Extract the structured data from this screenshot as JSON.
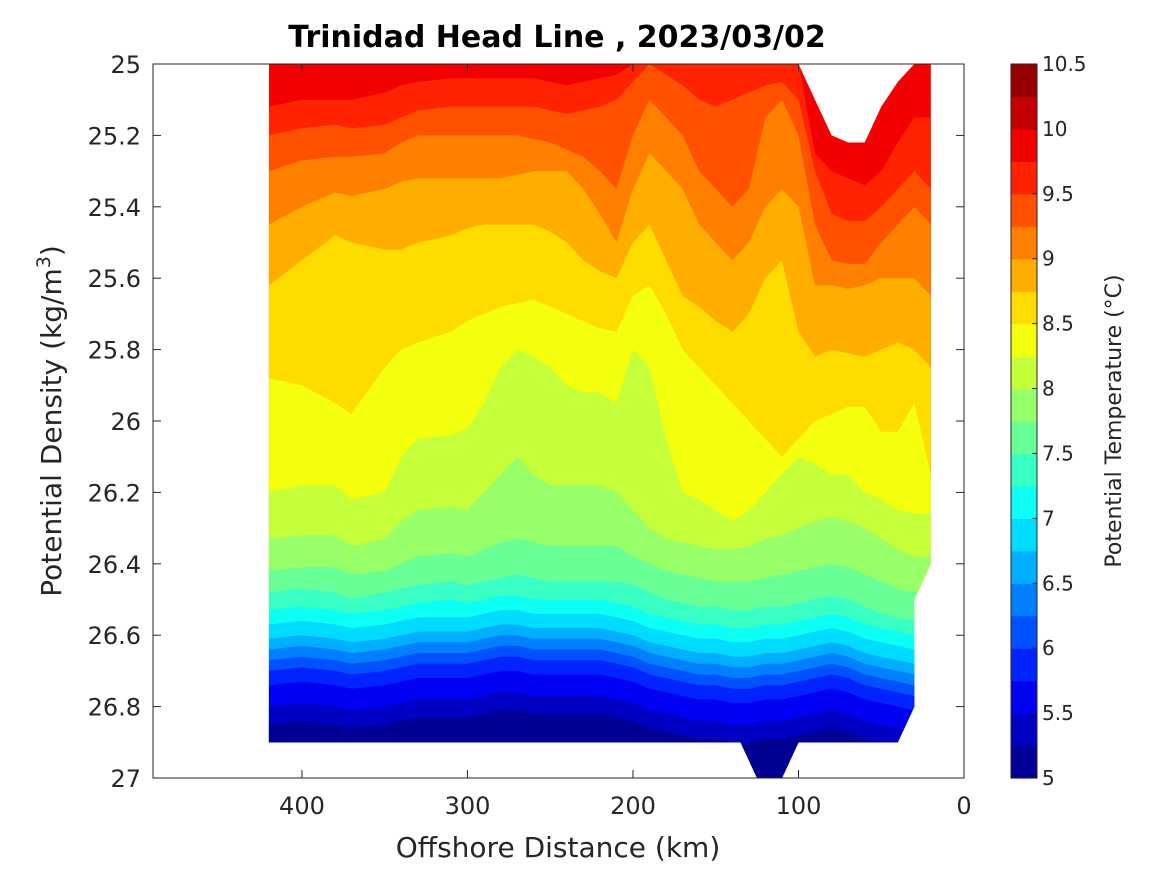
{
  "chart_data": {
    "type": "heatmap",
    "subtype": "filled-contour",
    "title": "Trinidad Head Line , 2023/03/02",
    "xlabel": "Offshore Distance (km)",
    "ylabel": "Potential Density (kg/m",
    "ylabel_superscript": "3",
    "ylabel_suffix": ")",
    "colorbar_label": "Potential Temperature (°C)",
    "x_reversed": true,
    "y_reversed": true,
    "xlim": [
      0,
      490
    ],
    "ylim": [
      25,
      27
    ],
    "x_ticks": [
      400,
      300,
      200,
      100,
      0
    ],
    "y_ticks": [
      25,
      25.2,
      25.4,
      25.6,
      25.8,
      26,
      26.2,
      26.4,
      26.6,
      26.8,
      27
    ],
    "y_tick_labels": [
      "25",
      "25.2",
      "25.4",
      "25.6",
      "25.8",
      "26",
      "26.2",
      "26.4",
      "26.6",
      "26.8",
      "27"
    ],
    "colorbar_ticks": [
      "10.5",
      "10",
      "9.5",
      "9",
      "8.5",
      "8",
      "7.5",
      "7",
      "6.5",
      "6",
      "5.5",
      "5"
    ],
    "colorbar_range": [
      5,
      10.5
    ],
    "contour_step": 0.25,
    "colormap": "jet",
    "grid": false,
    "stations_km": [
      420,
      400,
      380,
      370,
      350,
      340,
      330,
      310,
      300,
      290,
      280,
      270,
      260,
      250,
      240,
      230,
      220,
      210,
      200,
      190,
      180,
      170,
      160,
      150,
      140,
      130,
      120,
      110,
      100,
      90,
      80,
      70,
      60,
      50,
      40,
      30,
      20
    ],
    "isotherms": [
      {
        "temp": 10.0,
        "density": [
          25.0,
          25.0,
          25.0,
          25.0,
          25.0,
          25.0,
          25.0,
          25.0,
          25.0,
          25.0,
          25.0,
          25.0,
          25.0,
          25.0,
          25.0,
          25.0,
          25.0,
          25.0,
          25.0,
          25.0,
          25.0,
          25.0,
          25.0,
          25.0,
          25.0,
          25.0,
          25.0,
          25.0,
          25.0,
          25.1,
          25.2,
          25.22,
          25.22,
          25.12,
          25.05,
          25.0,
          25.0
        ]
      },
      {
        "temp": 9.75,
        "density": [
          25.12,
          25.1,
          25.1,
          25.1,
          25.08,
          25.06,
          25.05,
          25.04,
          25.04,
          25.04,
          25.04,
          25.04,
          25.04,
          25.05,
          25.06,
          25.05,
          25.04,
          25.03,
          25.0,
          25.0,
          25.0,
          25.0,
          25.0,
          25.0,
          25.0,
          25.0,
          25.0,
          25.0,
          25.0,
          25.25,
          25.3,
          25.32,
          25.34,
          25.3,
          25.22,
          25.15,
          25.15
        ]
      },
      {
        "temp": 9.5,
        "density": [
          25.2,
          25.18,
          25.17,
          25.18,
          25.17,
          25.15,
          25.13,
          25.12,
          25.12,
          25.12,
          25.12,
          25.12,
          25.12,
          25.13,
          25.14,
          25.13,
          25.12,
          25.1,
          25.05,
          25.0,
          25.03,
          25.06,
          25.1,
          25.12,
          25.1,
          25.08,
          25.06,
          25.05,
          25.1,
          25.3,
          25.42,
          25.44,
          25.44,
          25.4,
          25.35,
          25.3,
          25.35
        ]
      },
      {
        "temp": 9.25,
        "density": [
          25.3,
          25.27,
          25.26,
          25.26,
          25.25,
          25.22,
          25.2,
          25.2,
          25.2,
          25.2,
          25.2,
          25.2,
          25.21,
          25.22,
          25.24,
          25.26,
          25.3,
          25.35,
          25.2,
          25.1,
          25.15,
          25.2,
          25.3,
          25.35,
          25.4,
          25.35,
          25.15,
          25.1,
          25.2,
          25.45,
          25.55,
          25.56,
          25.56,
          25.5,
          25.45,
          25.4,
          25.45
        ]
      },
      {
        "temp": 9.0,
        "density": [
          25.45,
          25.4,
          25.36,
          25.37,
          25.35,
          25.33,
          25.32,
          25.32,
          25.32,
          25.32,
          25.32,
          25.31,
          25.3,
          25.3,
          25.3,
          25.35,
          25.42,
          25.5,
          25.35,
          25.25,
          25.3,
          25.35,
          25.45,
          25.5,
          25.55,
          25.5,
          25.4,
          25.35,
          25.4,
          25.62,
          25.62,
          25.63,
          25.62,
          25.6,
          25.6,
          25.6,
          25.65
        ]
      },
      {
        "temp": 8.75,
        "density": [
          25.62,
          25.55,
          25.48,
          25.5,
          25.52,
          25.52,
          25.5,
          25.48,
          25.46,
          25.45,
          25.45,
          25.45,
          25.45,
          25.47,
          25.5,
          25.55,
          25.58,
          25.6,
          25.5,
          25.45,
          25.55,
          25.65,
          25.68,
          25.72,
          25.75,
          25.7,
          25.6,
          25.55,
          25.75,
          25.82,
          25.8,
          25.81,
          25.82,
          25.8,
          25.78,
          25.8,
          25.85
        ]
      },
      {
        "temp": 8.5,
        "density": [
          25.88,
          25.9,
          25.95,
          25.98,
          25.85,
          25.8,
          25.78,
          25.75,
          25.72,
          25.7,
          25.68,
          25.67,
          25.66,
          25.68,
          25.7,
          25.72,
          25.74,
          25.75,
          25.65,
          25.62,
          25.7,
          25.8,
          25.85,
          25.9,
          25.95,
          26.0,
          26.05,
          26.1,
          26.05,
          26.0,
          25.98,
          25.96,
          25.96,
          26.03,
          26.03,
          25.95,
          26.15
        ]
      },
      {
        "temp": 8.25,
        "density": [
          26.2,
          26.18,
          26.18,
          26.22,
          26.2,
          26.1,
          26.05,
          26.04,
          26.02,
          25.95,
          25.85,
          25.8,
          25.82,
          25.85,
          25.9,
          25.92,
          25.92,
          25.95,
          25.8,
          25.85,
          26.05,
          26.2,
          26.22,
          26.25,
          26.28,
          26.25,
          26.2,
          26.15,
          26.1,
          26.12,
          26.15,
          26.15,
          26.2,
          26.22,
          26.25,
          26.26,
          26.26
        ]
      },
      {
        "temp": 8.0,
        "density": [
          26.33,
          26.32,
          26.32,
          26.35,
          26.33,
          26.28,
          26.25,
          26.24,
          26.25,
          26.2,
          26.15,
          26.1,
          26.15,
          26.18,
          26.18,
          26.18,
          26.18,
          26.2,
          26.25,
          26.3,
          26.33,
          26.34,
          26.35,
          26.36,
          26.36,
          26.35,
          26.33,
          26.32,
          26.3,
          26.28,
          26.27,
          26.28,
          26.3,
          26.33,
          26.36,
          26.38,
          26.38
        ]
      },
      {
        "temp": 7.75,
        "density": [
          26.42,
          26.41,
          26.41,
          26.43,
          26.42,
          26.4,
          26.38,
          26.37,
          26.38,
          26.36,
          26.34,
          26.33,
          26.34,
          26.35,
          26.35,
          26.35,
          26.35,
          26.35,
          26.38,
          26.4,
          26.42,
          26.43,
          26.44,
          26.45,
          26.45,
          26.45,
          26.44,
          26.43,
          26.42,
          26.41,
          26.4,
          26.41,
          26.43,
          26.45,
          26.47,
          26.48,
          26.47
        ]
      },
      {
        "temp": 7.5,
        "density": [
          26.48,
          26.47,
          26.48,
          26.5,
          26.48,
          26.47,
          26.46,
          26.45,
          26.46,
          26.45,
          26.44,
          26.43,
          26.44,
          26.45,
          26.45,
          26.45,
          26.45,
          26.45,
          26.46,
          26.48,
          26.5,
          26.51,
          26.52,
          26.52,
          26.53,
          26.53,
          26.52,
          26.52,
          26.51,
          26.5,
          26.49,
          26.5,
          26.52,
          26.54,
          26.55,
          26.56,
          26.56
        ]
      },
      {
        "temp": 7.25,
        "density": [
          26.53,
          26.52,
          26.53,
          26.54,
          26.53,
          26.52,
          26.51,
          26.5,
          26.51,
          26.5,
          26.49,
          26.49,
          26.5,
          26.5,
          26.5,
          26.5,
          26.5,
          26.51,
          26.52,
          26.54,
          26.55,
          26.56,
          26.57,
          26.57,
          26.58,
          26.58,
          26.57,
          26.57,
          26.56,
          26.55,
          26.54,
          26.55,
          26.57,
          26.58,
          26.59,
          26.6,
          26.6
        ]
      },
      {
        "temp": 7.0,
        "density": [
          26.57,
          26.56,
          26.57,
          26.58,
          26.57,
          26.56,
          26.55,
          26.55,
          26.55,
          26.54,
          26.53,
          26.53,
          26.54,
          26.54,
          26.54,
          26.54,
          26.54,
          26.55,
          26.56,
          26.58,
          26.59,
          26.6,
          26.61,
          26.61,
          26.62,
          26.62,
          26.61,
          26.61,
          26.6,
          26.59,
          26.58,
          26.59,
          26.61,
          26.62,
          26.63,
          26.64,
          26.64
        ]
      },
      {
        "temp": 6.75,
        "density": [
          26.61,
          26.6,
          26.61,
          26.62,
          26.61,
          26.6,
          26.59,
          26.59,
          26.59,
          26.58,
          26.57,
          26.57,
          26.58,
          26.58,
          26.58,
          26.58,
          26.58,
          26.59,
          26.6,
          26.62,
          26.63,
          26.64,
          26.65,
          26.65,
          26.66,
          26.66,
          26.65,
          26.65,
          26.64,
          26.63,
          26.62,
          26.63,
          26.65,
          26.66,
          26.67,
          26.68,
          26.68
        ]
      },
      {
        "temp": 6.5,
        "density": [
          26.64,
          26.63,
          26.64,
          26.65,
          26.64,
          26.63,
          26.62,
          26.62,
          26.62,
          26.61,
          26.6,
          26.6,
          26.61,
          26.61,
          26.61,
          26.61,
          26.61,
          26.62,
          26.63,
          26.65,
          26.66,
          26.67,
          26.68,
          26.68,
          26.69,
          26.69,
          26.68,
          26.68,
          26.67,
          26.66,
          26.65,
          26.66,
          26.68,
          26.69,
          26.7,
          26.71,
          26.71
        ]
      },
      {
        "temp": 6.25,
        "density": [
          26.67,
          26.66,
          26.67,
          26.68,
          26.67,
          26.66,
          26.65,
          26.65,
          26.65,
          26.64,
          26.63,
          26.63,
          26.64,
          26.64,
          26.64,
          26.64,
          26.64,
          26.65,
          26.66,
          26.68,
          26.69,
          26.7,
          26.71,
          26.71,
          26.72,
          26.72,
          26.71,
          26.71,
          26.7,
          26.69,
          26.68,
          26.69,
          26.71,
          26.72,
          26.73,
          26.74,
          26.74
        ]
      },
      {
        "temp": 6.0,
        "density": [
          26.7,
          26.69,
          26.7,
          26.71,
          26.7,
          26.69,
          26.68,
          26.68,
          26.68,
          26.67,
          26.66,
          26.66,
          26.67,
          26.67,
          26.67,
          26.67,
          26.67,
          26.68,
          26.69,
          26.71,
          26.72,
          26.73,
          26.74,
          26.74,
          26.75,
          26.75,
          26.74,
          26.74,
          26.73,
          26.72,
          26.71,
          26.72,
          26.74,
          26.75,
          26.76,
          26.77,
          26.77
        ]
      },
      {
        "temp": 5.75,
        "density": [
          26.74,
          26.73,
          26.74,
          26.75,
          26.74,
          26.73,
          26.72,
          26.72,
          26.72,
          26.71,
          26.7,
          26.7,
          26.71,
          26.71,
          26.71,
          26.71,
          26.71,
          26.72,
          26.73,
          26.75,
          26.76,
          26.77,
          26.78,
          26.78,
          26.79,
          26.79,
          26.78,
          26.78,
          26.77,
          26.76,
          26.75,
          26.76,
          26.78,
          26.79,
          26.8,
          26.81,
          26.81
        ]
      },
      {
        "temp": 5.5,
        "density": [
          26.8,
          26.79,
          26.8,
          26.81,
          26.8,
          26.79,
          26.78,
          26.78,
          26.78,
          26.77,
          26.76,
          26.76,
          26.77,
          26.77,
          26.77,
          26.77,
          26.77,
          26.78,
          26.79,
          26.81,
          26.82,
          26.83,
          26.84,
          26.84,
          26.85,
          26.85,
          26.84,
          26.84,
          26.83,
          26.82,
          26.81,
          26.82,
          26.84,
          26.85,
          26.86,
          26.87,
          26.87
        ]
      },
      {
        "temp": 5.25,
        "density": [
          26.85,
          26.84,
          26.85,
          26.86,
          26.85,
          26.84,
          26.83,
          26.83,
          26.83,
          26.82,
          26.81,
          26.81,
          26.82,
          26.82,
          26.82,
          26.82,
          26.82,
          26.83,
          26.84,
          26.86,
          26.87,
          26.88,
          26.89,
          26.89,
          26.9,
          26.9,
          26.89,
          26.89,
          26.88,
          26.87,
          26.86,
          26.87,
          26.89,
          26.9,
          26.91,
          26.92,
          26.92
        ]
      }
    ],
    "data_extent": {
      "top_boundary": [
        [
          420,
          25.0
        ],
        [
          20,
          25.0
        ]
      ],
      "bottom_boundary": [
        [
          420,
          26.9
        ],
        [
          135,
          26.9
        ],
        [
          125,
          27.0
        ],
        [
          110,
          27.0
        ],
        [
          100,
          26.9
        ],
        [
          40,
          26.9
        ],
        [
          30,
          26.8
        ],
        [
          30,
          26.5
        ],
        [
          20,
          26.4
        ]
      ],
      "bottom_fill_temp": 5.1
    }
  }
}
